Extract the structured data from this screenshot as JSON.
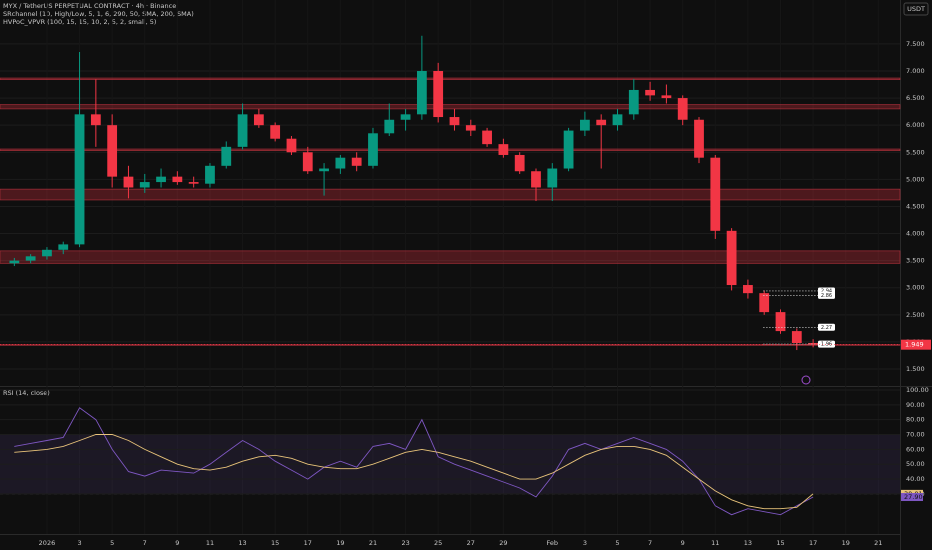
{
  "chart_data": [
    {
      "type": "candlestick",
      "title": "MYX / TetherUS PERPETUAL CONTRACT · 4h · Binance",
      "indicators": [
        "SRchannel (10, High/Low, 5, 1, 6, 290, 50, SMA, 200, SMA)",
        "HVPoC_VPVR (100, 15, 15, 10, 2, 5, 2, small, 5)"
      ],
      "y_axis_label": "USDT",
      "x": [
        -2,
        -1,
        0,
        1,
        2,
        3,
        4,
        5,
        6,
        7,
        8,
        9,
        10,
        11,
        12,
        13,
        14,
        15,
        16,
        17,
        18,
        19,
        20,
        21,
        22,
        23,
        24,
        25,
        26,
        27,
        28,
        29,
        30,
        31,
        32,
        33,
        34,
        35,
        36,
        37,
        38,
        39,
        40,
        41,
        42,
        43,
        44,
        45,
        46,
        47
      ],
      "open": [
        3.45,
        3.5,
        3.58,
        3.7,
        3.8,
        6.2,
        6.0,
        5.05,
        4.85,
        4.95,
        5.05,
        4.95,
        4.92,
        5.25,
        5.6,
        6.2,
        6.0,
        5.75,
        5.5,
        5.15,
        5.2,
        5.4,
        5.25,
        5.85,
        6.1,
        6.2,
        7.0,
        6.15,
        6.0,
        5.9,
        5.65,
        5.45,
        5.15,
        4.85,
        5.2,
        5.9,
        6.1,
        6.0,
        6.2,
        6.65,
        6.55,
        6.5,
        6.1,
        5.4,
        4.05,
        3.05,
        2.9,
        2.55,
        2.2,
        1.98
      ],
      "high": [
        3.55,
        3.62,
        3.75,
        3.85,
        7.35,
        6.85,
        6.2,
        5.25,
        5.1,
        5.2,
        5.15,
        5.05,
        5.3,
        5.7,
        6.4,
        6.3,
        6.05,
        5.8,
        5.6,
        5.3,
        5.45,
        5.5,
        5.95,
        6.4,
        6.3,
        7.65,
        7.15,
        6.3,
        6.1,
        5.95,
        5.75,
        5.5,
        5.2,
        5.3,
        5.95,
        6.25,
        6.2,
        6.3,
        6.85,
        6.8,
        6.75,
        6.55,
        6.15,
        5.45,
        4.1,
        3.15,
        2.95,
        2.6,
        2.25,
        2.05
      ],
      "low": [
        3.4,
        3.45,
        3.52,
        3.62,
        3.75,
        5.6,
        4.85,
        4.65,
        4.75,
        4.85,
        4.9,
        4.85,
        4.85,
        5.2,
        5.55,
        5.95,
        5.7,
        5.45,
        5.1,
        4.7,
        5.1,
        5.15,
        5.2,
        5.8,
        5.9,
        6.1,
        6.05,
        5.9,
        5.8,
        5.6,
        5.4,
        5.1,
        4.6,
        4.6,
        5.15,
        5.8,
        5.2,
        5.9,
        6.1,
        6.45,
        6.4,
        6.0,
        5.3,
        3.9,
        2.95,
        2.8,
        2.5,
        2.15,
        1.85,
        1.9
      ],
      "close": [
        3.5,
        3.58,
        3.7,
        3.8,
        6.2,
        6.0,
        5.05,
        4.85,
        4.95,
        5.05,
        4.95,
        4.92,
        5.25,
        5.6,
        6.2,
        6.0,
        5.75,
        5.5,
        5.15,
        5.2,
        5.4,
        5.25,
        5.85,
        6.1,
        6.2,
        7.0,
        6.15,
        6.0,
        5.9,
        5.65,
        5.45,
        5.15,
        4.85,
        5.2,
        5.9,
        6.1,
        6.0,
        6.2,
        6.65,
        6.55,
        6.5,
        6.1,
        5.4,
        4.05,
        3.05,
        2.9,
        2.55,
        2.2,
        1.98,
        1.95
      ],
      "up_color": "#089981",
      "down_color": "#f23645",
      "zones": [
        {
          "from": 6.84,
          "to": 6.87
        },
        {
          "from": 6.3,
          "to": 6.38
        },
        {
          "from": 5.53,
          "to": 5.56
        },
        {
          "from": 4.62,
          "to": 4.82
        },
        {
          "from": 3.45,
          "to": 3.68
        },
        {
          "from": 1.94,
          "to": 1.955
        }
      ],
      "price_labels": [
        2.94,
        2.86,
        2.27,
        1.96
      ],
      "last_price": 1.949,
      "xlim": [
        -2.88,
        52.33
      ],
      "xticks": [
        {
          "value": 0,
          "label": "2026"
        },
        {
          "value": 2,
          "label": "3"
        },
        {
          "value": 4,
          "label": "5"
        },
        {
          "value": 6,
          "label": "7"
        },
        {
          "value": 8,
          "label": "9"
        },
        {
          "value": 10,
          "label": "11"
        },
        {
          "value": 12,
          "label": "13"
        },
        {
          "value": 14,
          "label": "15"
        },
        {
          "value": 16,
          "label": "17"
        },
        {
          "value": 18,
          "label": "19"
        },
        {
          "value": 20,
          "label": "21"
        },
        {
          "value": 22,
          "label": "23"
        },
        {
          "value": 24,
          "label": "25"
        },
        {
          "value": 26,
          "label": "27"
        },
        {
          "value": 28,
          "label": "29"
        },
        {
          "value": 31,
          "label": "Feb"
        },
        {
          "value": 33,
          "label": "3"
        },
        {
          "value": 35,
          "label": "5"
        },
        {
          "value": 37,
          "label": "7"
        },
        {
          "value": 39,
          "label": "9"
        },
        {
          "value": 41,
          "label": "11"
        },
        {
          "value": 43,
          "label": "13"
        },
        {
          "value": 45,
          "label": "15"
        },
        {
          "value": 47,
          "label": "17"
        },
        {
          "value": 49,
          "label": "19"
        },
        {
          "value": 51,
          "label": "21"
        }
      ],
      "ylim": [
        1.205,
        8.31
      ],
      "yticks": [
        {
          "value": 1.5,
          "label": "1.500"
        },
        {
          "value": 2,
          "label": "2.000"
        },
        {
          "value": 2.5,
          "label": "2.500"
        },
        {
          "value": 3,
          "label": "3.000"
        },
        {
          "value": 3.5,
          "label": "3.500"
        },
        {
          "value": 4,
          "label": "4.000"
        },
        {
          "value": 4.5,
          "label": "4.500"
        },
        {
          "value": 5,
          "label": "5.000"
        },
        {
          "value": 5.5,
          "label": "5.500"
        },
        {
          "value": 6,
          "label": "6.000"
        },
        {
          "value": 6.5,
          "label": "6.500"
        },
        {
          "value": 7,
          "label": "7.000"
        },
        {
          "value": 7.5,
          "label": "7.500"
        }
      ]
    },
    {
      "type": "line",
      "title": "RSI (14, close)",
      "x": [
        -2,
        -1,
        0,
        1,
        2,
        3,
        4,
        5,
        6,
        7,
        8,
        9,
        10,
        11,
        12,
        13,
        14,
        15,
        16,
        17,
        18,
        19,
        20,
        21,
        22,
        23,
        24,
        25,
        26,
        27,
        28,
        29,
        30,
        31,
        32,
        33,
        34,
        35,
        36,
        37,
        38,
        39,
        40,
        41,
        42,
        43,
        44,
        45,
        46,
        47
      ],
      "series": [
        {
          "color": "#7e57c2",
          "values": [
            62,
            64,
            66,
            68,
            88,
            80,
            60,
            45,
            42,
            46,
            45,
            44,
            50,
            58,
            66,
            60,
            52,
            46,
            40,
            48,
            52,
            48,
            62,
            64,
            60,
            80,
            55,
            50,
            46,
            42,
            38,
            34,
            28,
            42,
            60,
            64,
            60,
            64,
            68,
            64,
            60,
            52,
            40,
            22,
            16,
            20,
            18,
            16,
            22,
            27.9
          ]
        },
        {
          "color": "#e8c37a",
          "values": [
            58,
            59,
            60,
            62,
            66,
            70,
            70,
            66,
            60,
            55,
            50,
            47,
            46,
            48,
            52,
            55,
            56,
            54,
            50,
            48,
            47,
            47,
            50,
            54,
            58,
            60,
            58,
            55,
            52,
            48,
            44,
            40,
            40,
            44,
            50,
            56,
            60,
            62,
            62,
            60,
            56,
            48,
            40,
            32,
            26,
            22,
            20,
            20,
            21,
            30.01
          ]
        }
      ],
      "band": [
        30,
        70
      ],
      "last_labels": [
        {
          "value": 30.01,
          "label": "30.01"
        },
        {
          "value": 27.9,
          "label": "27.90"
        }
      ],
      "xlim": [
        -2.88,
        52.33
      ],
      "ylim": [
        5,
        100
      ],
      "yticks": [
        {
          "value": 30,
          "label": "30.00"
        },
        {
          "value": 40,
          "label": "40.00"
        },
        {
          "value": 50,
          "label": "50.00"
        },
        {
          "value": 60,
          "label": "60.00"
        },
        {
          "value": 70,
          "label": "70.00"
        },
        {
          "value": 80,
          "label": "80.00"
        },
        {
          "value": 90,
          "label": "90.00"
        },
        {
          "value": 100,
          "label": "100.00"
        }
      ]
    }
  ]
}
